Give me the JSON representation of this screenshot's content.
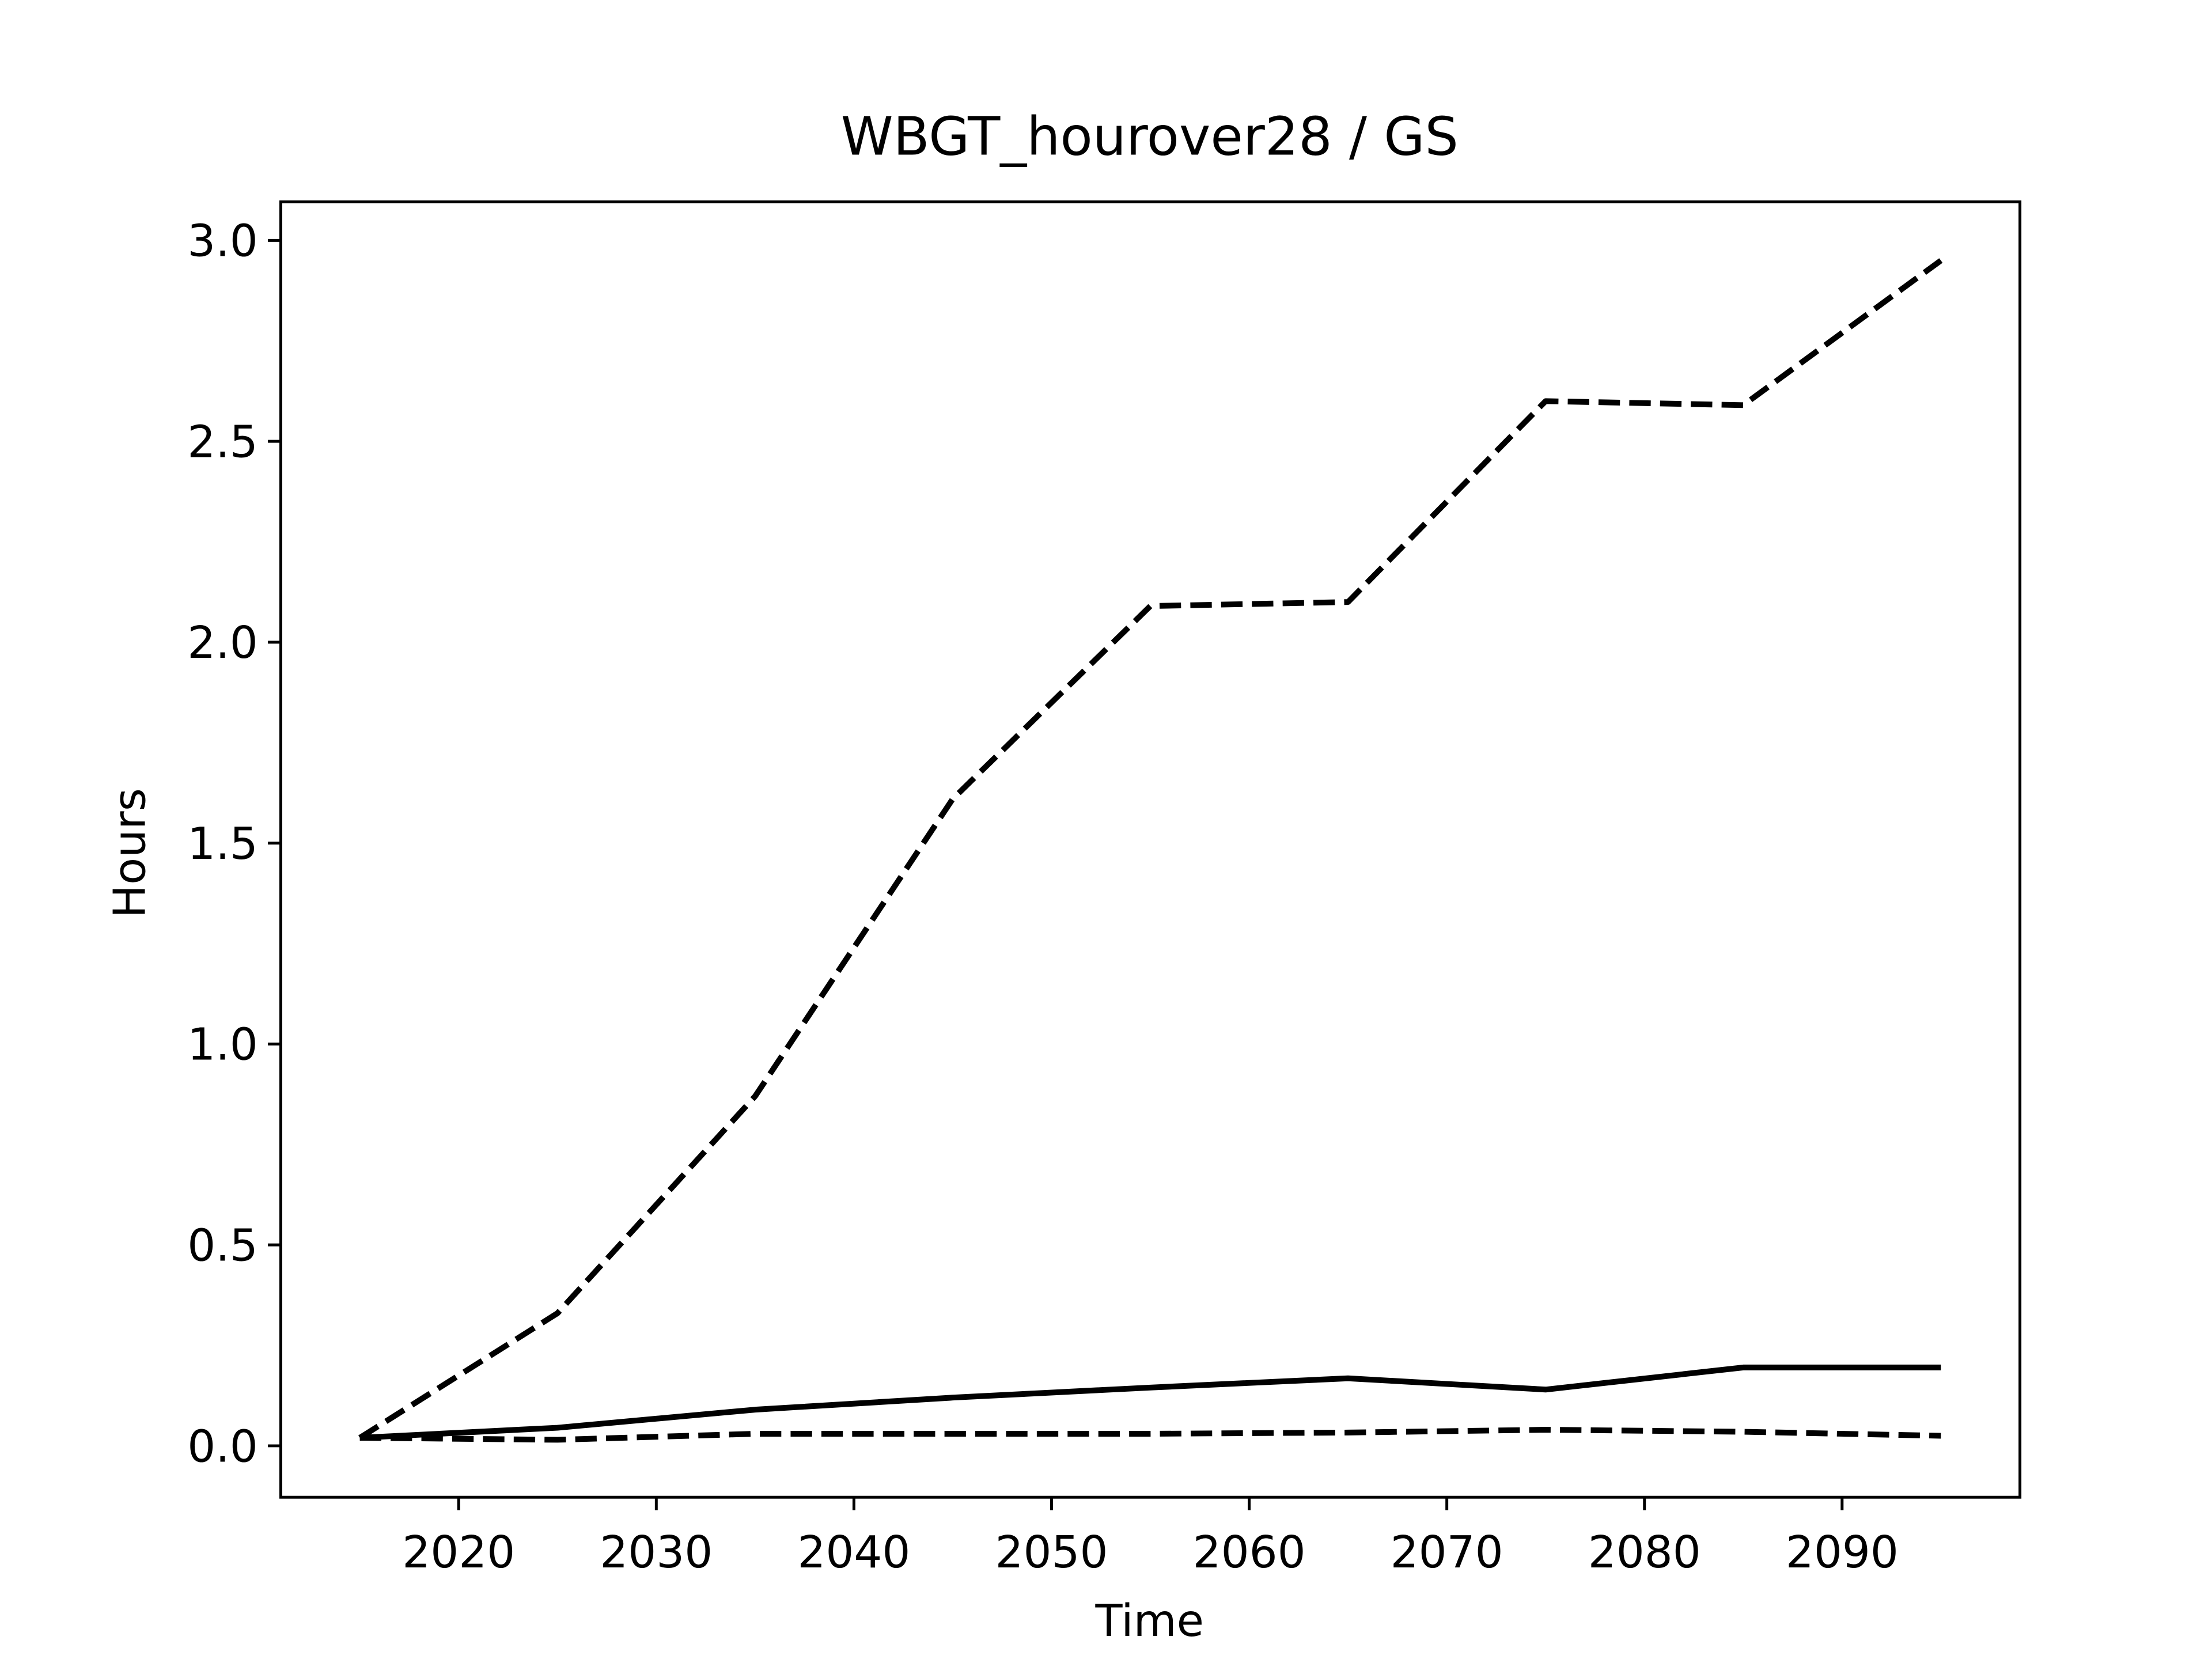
{
  "chart_data": {
    "type": "line",
    "title": "WBGT_hourover28 / GS",
    "xlabel": "Time",
    "ylabel": "Hours",
    "x": [
      2015,
      2025,
      2035,
      2045,
      2055,
      2065,
      2075,
      2085,
      2095
    ],
    "series": [
      {
        "color": "#000000",
        "linestyle": "dashed",
        "values": [
          0.02,
          0.33,
          0.87,
          1.61,
          2.09,
          2.1,
          2.6,
          2.59,
          2.95
        ]
      },
      {
        "color": "#000000",
        "linestyle": "solid",
        "values": [
          0.02,
          0.045,
          0.09,
          0.12,
          0.145,
          0.168,
          0.14,
          0.195,
          0.195
        ]
      },
      {
        "color": "#000000",
        "linestyle": "dashed",
        "values": [
          0.02,
          0.015,
          0.03,
          0.03,
          0.03,
          0.033,
          0.04,
          0.035,
          0.025
        ]
      }
    ],
    "xlim": [
      2011,
      2099
    ],
    "ylim": [
      -0.128,
      3.096
    ],
    "xticks": [
      2020,
      2030,
      2040,
      2050,
      2060,
      2070,
      2080,
      2090
    ],
    "yticks": [
      {
        "value": 0,
        "label": "0.0"
      },
      0.5,
      {
        "value": 1,
        "label": "1.0"
      },
      1.5,
      {
        "value": 2,
        "label": "2.0"
      },
      2.5,
      {
        "value": 3,
        "label": "3.0"
      }
    ]
  }
}
